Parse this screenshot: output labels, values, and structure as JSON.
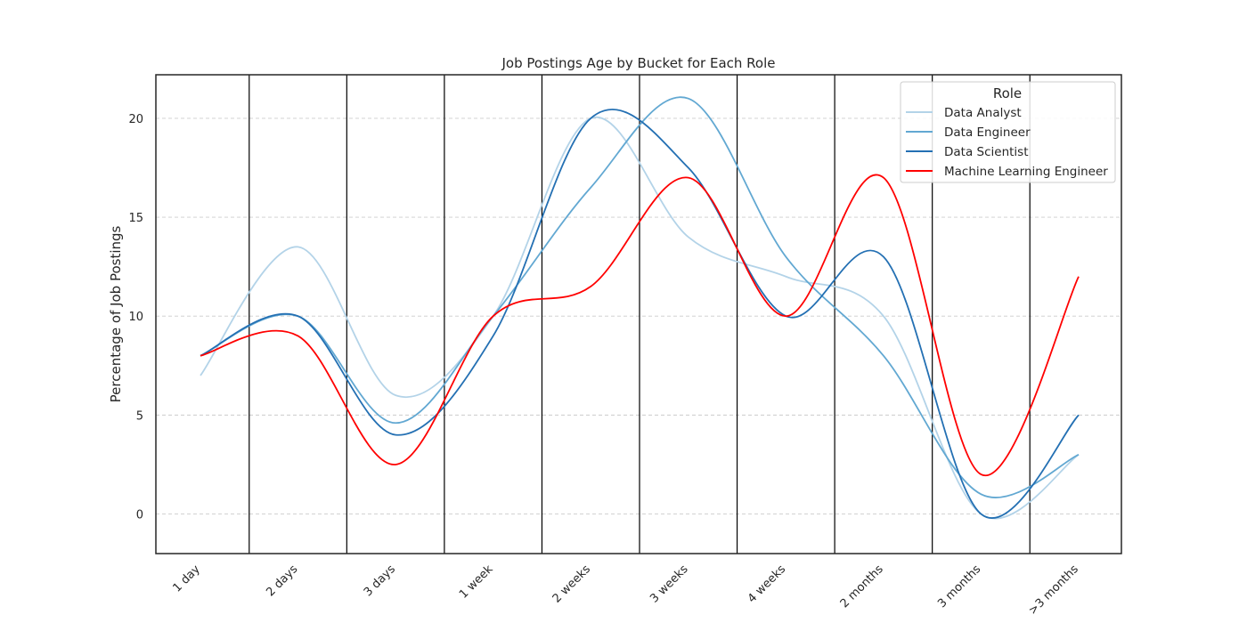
{
  "chart_data": {
    "type": "line",
    "title": "Job Postings Age by Bucket for Each Role",
    "xlabel": "",
    "ylabel": "Percentage of Job Postings",
    "categories": [
      "1 day",
      "2 days",
      "3 days",
      "1 week",
      "2 weeks",
      "3 weeks",
      "4 weeks",
      "2 months",
      "3 months",
      ">3 months"
    ],
    "y_ticks": [
      "0",
      "5",
      "10",
      "15",
      "20"
    ],
    "ylim": [
      -2,
      22.2
    ],
    "grid": "horizontal dashed",
    "smoothed": true,
    "legend": {
      "title": "Role",
      "placement": "top-right"
    },
    "series": [
      {
        "name": "Data Analyst",
        "color": "#b3d3e8",
        "values": [
          7,
          13.5,
          6,
          10,
          20,
          14,
          12,
          10,
          0,
          3
        ]
      },
      {
        "name": "Data Engineer",
        "color": "#62a8d2",
        "values": [
          8,
          10,
          4.6,
          10,
          16.5,
          21,
          13,
          8,
          1,
          3
        ]
      },
      {
        "name": "Data Scientist",
        "color": "#2470b3",
        "values": [
          8,
          10,
          4,
          9,
          20,
          17.5,
          10,
          13,
          0,
          5
        ]
      },
      {
        "name": "Machine Learning Engineer",
        "color": "#ff0000",
        "values": [
          8,
          9,
          2.5,
          10,
          11.5,
          17,
          10,
          17,
          2,
          12
        ]
      }
    ]
  }
}
